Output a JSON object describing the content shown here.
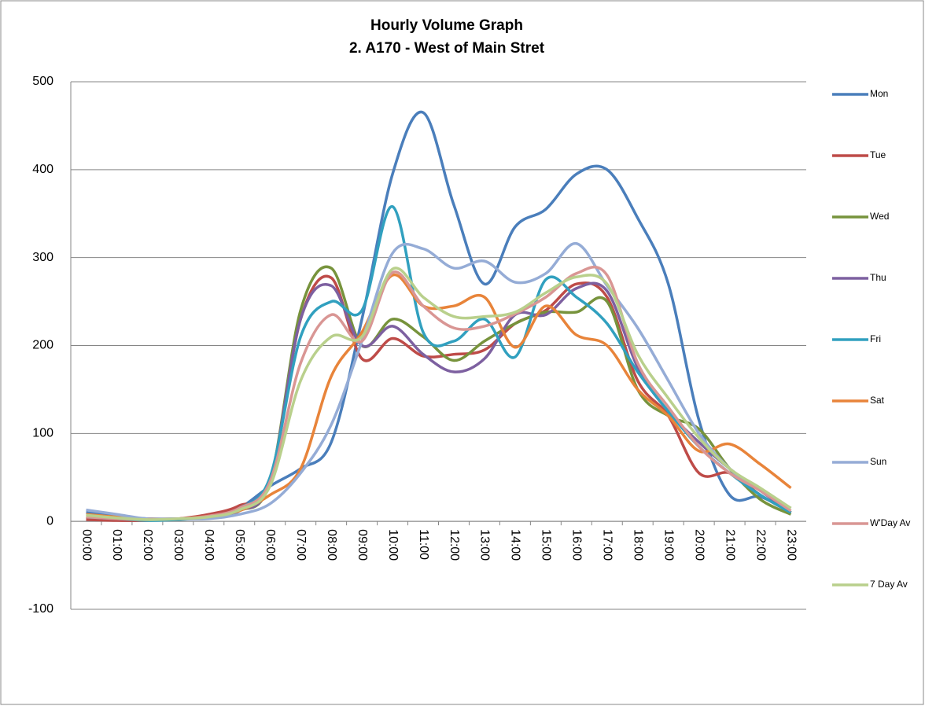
{
  "chart_data": {
    "type": "line",
    "title": "Hourly Volume Graph",
    "subtitle": "2. A170 - West of Main Stret",
    "categories": [
      "00:00",
      "01:00",
      "02:00",
      "03:00",
      "04:00",
      "05:00",
      "06:00",
      "07:00",
      "08:00",
      "09:00",
      "10:00",
      "11:00",
      "12:00",
      "13:00",
      "14:00",
      "15:00",
      "16:00",
      "17:00",
      "18:00",
      "19:00",
      "20:00",
      "21:00",
      "22:00",
      "23:00"
    ],
    "series": [
      {
        "name": "Mon",
        "color": "#4a7ebb",
        "values": [
          10,
          6,
          3,
          3,
          5,
          15,
          40,
          60,
          90,
          230,
          395,
          465,
          360,
          270,
          335,
          355,
          395,
          400,
          345,
          270,
          115,
          30,
          28,
          10
        ]
      },
      {
        "name": "Tue",
        "color": "#be4b48",
        "values": [
          2,
          1,
          1,
          3,
          8,
          18,
          45,
          230,
          277,
          185,
          208,
          188,
          190,
          195,
          225,
          240,
          270,
          255,
          160,
          120,
          55,
          55,
          30,
          10
        ]
      },
      {
        "name": "Wed",
        "color": "#77933c",
        "values": [
          5,
          3,
          2,
          3,
          5,
          12,
          45,
          240,
          288,
          200,
          230,
          210,
          183,
          205,
          225,
          238,
          238,
          250,
          150,
          120,
          105,
          60,
          25,
          8
        ]
      },
      {
        "name": "Thu",
        "color": "#7d60a0",
        "values": [
          5,
          3,
          2,
          3,
          5,
          12,
          45,
          230,
          268,
          200,
          222,
          190,
          170,
          185,
          235,
          235,
          265,
          262,
          175,
          125,
          90,
          60,
          35,
          10
        ]
      },
      {
        "name": "Fri",
        "color": "#31a0bf",
        "values": [
          5,
          3,
          1,
          2,
          5,
          15,
          50,
          210,
          250,
          240,
          358,
          215,
          205,
          230,
          187,
          275,
          255,
          225,
          170,
          125,
          85,
          55,
          30,
          10
        ]
      },
      {
        "name": "Sat",
        "color": "#e8843a",
        "values": [
          8,
          5,
          3,
          3,
          6,
          12,
          30,
          60,
          165,
          215,
          280,
          245,
          245,
          255,
          198,
          245,
          212,
          200,
          150,
          120,
          80,
          88,
          65,
          38
        ]
      },
      {
        "name": "Sun",
        "color": "#95acd6",
        "values": [
          13,
          8,
          3,
          3,
          3,
          8,
          20,
          55,
          110,
          205,
          305,
          310,
          288,
          296,
          272,
          282,
          316,
          268,
          220,
          160,
          100,
          60,
          35,
          15
        ]
      },
      {
        "name": "W'Day Av",
        "color": "#d99694",
        "values": [
          5,
          3,
          2,
          3,
          6,
          15,
          45,
          180,
          235,
          205,
          283,
          245,
          220,
          222,
          236,
          255,
          282,
          280,
          180,
          130,
          85,
          55,
          35,
          12
        ]
      },
      {
        "name": "7 Day Av",
        "color": "#b9d08c",
        "values": [
          7,
          4,
          2,
          3,
          5,
          13,
          40,
          160,
          210,
          210,
          287,
          255,
          233,
          233,
          238,
          260,
          278,
          270,
          190,
          140,
          95,
          60,
          38,
          15
        ]
      }
    ],
    "ylim": [
      -100,
      500
    ],
    "yticks": [
      -100,
      0,
      100,
      200,
      300,
      400,
      500
    ],
    "grid": true,
    "legend": "right"
  }
}
